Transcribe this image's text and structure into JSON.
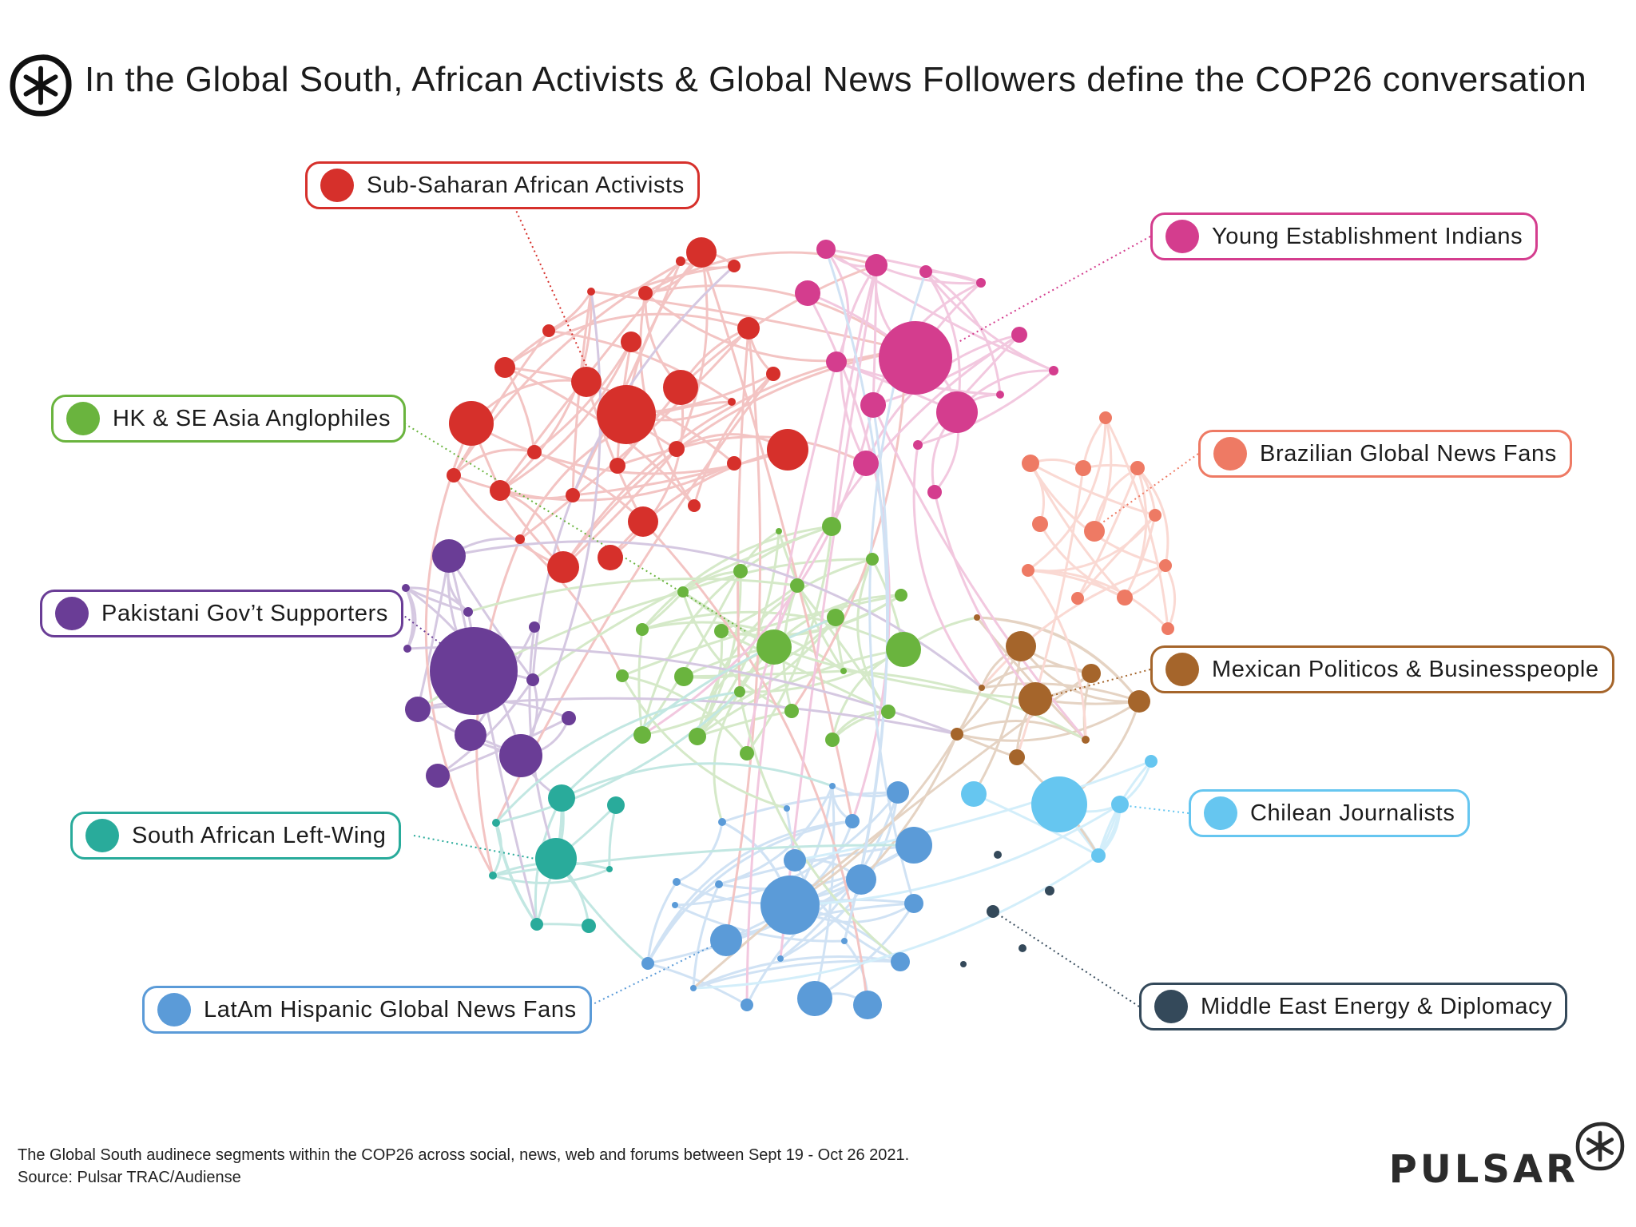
{
  "title": "In the Global South, African Activists & Global News Followers define the COP26 conversation",
  "footer": {
    "line1": "The Global South audinece segments within the COP26 across social, news, web and forums between Sept 19  - Oct 26 2021.",
    "line2": "Source: Pulsar TRAC/Audiense"
  },
  "brand": "PULSAR",
  "segments": [
    {
      "key": "ssa",
      "label": "Sub-Saharan African Activists",
      "color": "#d6302b"
    },
    {
      "key": "yei",
      "label": "Young Establishment Indians",
      "color": "#d43d8e"
    },
    {
      "key": "hk",
      "label": "HK & SE Asia Anglophiles",
      "color": "#6ab43e"
    },
    {
      "key": "bgn",
      "label": "Brazilian Global News Fans",
      "color": "#ee7a64"
    },
    {
      "key": "pak",
      "label": "Pakistani Gov’t Supporters",
      "color": "#6a3d96"
    },
    {
      "key": "mex",
      "label": "Mexican Politicos & Businesspeople",
      "color": "#a5652b"
    },
    {
      "key": "chi",
      "label": "Chilean Journalists",
      "color": "#66c6f0"
    },
    {
      "key": "saf",
      "label": "South African Left-Wing",
      "color": "#29ab9b"
    },
    {
      "key": "lat",
      "label": "LatAm Hispanic Global News Fans",
      "color": "#5b9bd8"
    },
    {
      "key": "mid",
      "label": "Middle East Energy & Diplomacy",
      "color": "#34495a"
    }
  ]
}
